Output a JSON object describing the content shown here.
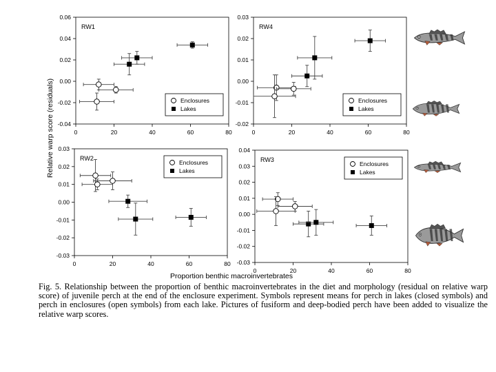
{
  "figure": {
    "y_axis_label": "Relative warp score (residuals)",
    "x_axis_label": "Proportion benthic macroinvertebrates",
    "fish_pictures": [
      {
        "name": "fusiform-perch-rw1",
        "body": "fusiform"
      },
      {
        "name": "deep-bodied-perch-rw1",
        "body": "deep"
      },
      {
        "name": "fusiform-perch-rw2",
        "body": "fusiform"
      },
      {
        "name": "deep-bodied-perch-rw2",
        "body": "deep"
      }
    ]
  },
  "chart_data": [
    {
      "type": "scatter",
      "title": "RW1",
      "xlim": [
        0,
        80
      ],
      "ylim": [
        -0.04,
        0.06
      ],
      "xticks": [
        "0",
        "20",
        "40",
        "60",
        "80"
      ],
      "yticks": [
        "-0.04",
        "-0.02",
        "0.00",
        "0.02",
        "0.04",
        "0.06"
      ],
      "legend": {
        "position": "bottom-right",
        "entries": [
          "Enclosures",
          "Lakes"
        ]
      },
      "series": [
        {
          "name": "Enclosures",
          "marker": "open-circle",
          "points": [
            {
              "x": 12,
              "y": -0.003,
              "xerr": 8,
              "yerr": 0.005
            },
            {
              "x": 11,
              "y": -0.019,
              "xerr": 9,
              "yerr": 0.008
            },
            {
              "x": 21,
              "y": -0.008,
              "xerr": 9,
              "yerr": 0.003
            }
          ]
        },
        {
          "name": "Lakes",
          "marker": "filled-square",
          "points": [
            {
              "x": 28,
              "y": 0.016,
              "xerr": 8,
              "yerr": 0.01
            },
            {
              "x": 32,
              "y": 0.022,
              "xerr": 8,
              "yerr": 0.006
            },
            {
              "x": 61,
              "y": 0.034,
              "xerr": 8,
              "yerr": 0.003
            }
          ]
        }
      ]
    },
    {
      "type": "scatter",
      "title": "RW4",
      "xlim": [
        0,
        80
      ],
      "ylim": [
        -0.02,
        0.03
      ],
      "xticks": [
        "0",
        "20",
        "40",
        "60",
        "80"
      ],
      "yticks": [
        "-0.02",
        "-0.01",
        "0.00",
        "0.01",
        "0.02",
        "0.03"
      ],
      "legend": {
        "position": "bottom-right",
        "entries": [
          "Enclosures",
          "Lakes"
        ]
      },
      "series": [
        {
          "name": "Enclosures",
          "marker": "open-circle",
          "points": [
            {
              "x": 12,
              "y": -0.003,
              "xerr": 10,
              "yerr": 0.006
            },
            {
              "x": 11,
              "y": -0.007,
              "xerr": 11,
              "yerr": 0.01
            },
            {
              "x": 21,
              "y": -0.0035,
              "xerr": 9,
              "yerr": 0.003
            }
          ]
        },
        {
          "name": "Lakes",
          "marker": "filled-square",
          "points": [
            {
              "x": 28,
              "y": 0.0025,
              "xerr": 8,
              "yerr": 0.005
            },
            {
              "x": 32,
              "y": 0.011,
              "xerr": 9,
              "yerr": 0.01
            },
            {
              "x": 61,
              "y": 0.019,
              "xerr": 8,
              "yerr": 0.005
            }
          ]
        }
      ]
    },
    {
      "type": "scatter",
      "title": "RW2",
      "xlim": [
        0,
        80
      ],
      "ylim": [
        -0.03,
        0.03
      ],
      "xticks": [
        "0",
        "20",
        "40",
        "60",
        "80"
      ],
      "yticks": [
        "-0.03",
        "-0.02",
        "-0.01",
        "0.00",
        "0.01",
        "0.02",
        "0.03"
      ],
      "legend": {
        "position": "top-right",
        "entries": [
          "Enclosures",
          "Lakes"
        ]
      },
      "series": [
        {
          "name": "Enclosures",
          "marker": "open-circle",
          "points": [
            {
              "x": 11,
              "y": 0.015,
              "xerr": 8,
              "yerr": 0.009
            },
            {
              "x": 12,
              "y": 0.01,
              "xerr": 8,
              "yerr": 0.003
            },
            {
              "x": 20,
              "y": 0.012,
              "xerr": 10,
              "yerr": 0.005
            }
          ]
        },
        {
          "name": "Lakes",
          "marker": "filled-square",
          "points": [
            {
              "x": 28,
              "y": 0.0005,
              "xerr": 10,
              "yerr": 0.0035
            },
            {
              "x": 32,
              "y": -0.0095,
              "xerr": 9,
              "yerr": 0.009
            },
            {
              "x": 61,
              "y": -0.0085,
              "xerr": 8,
              "yerr": 0.005
            }
          ]
        }
      ]
    },
    {
      "type": "scatter",
      "title": "RW3",
      "xlim": [
        0,
        80
      ],
      "ylim": [
        -0.03,
        0.04
      ],
      "xticks": [
        "0",
        "20",
        "40",
        "60",
        "80"
      ],
      "yticks": [
        "-0.03",
        "-0.02",
        "-0.01",
        "0.00",
        "0.01",
        "0.02",
        "0.03",
        "0.04"
      ],
      "legend": {
        "position": "top-right",
        "entries": [
          "Enclosures",
          "Lakes"
        ]
      },
      "series": [
        {
          "name": "Enclosures",
          "marker": "open-circle",
          "points": [
            {
              "x": 12,
              "y": 0.0095,
              "xerr": 8,
              "yerr": 0.004
            },
            {
              "x": 11,
              "y": 0.002,
              "xerr": 10,
              "yerr": 0.009
            },
            {
              "x": 21,
              "y": 0.005,
              "xerr": 9,
              "yerr": 0.003
            }
          ]
        },
        {
          "name": "Lakes",
          "marker": "filled-square",
          "points": [
            {
              "x": 28,
              "y": -0.006,
              "xerr": 8,
              "yerr": 0.008
            },
            {
              "x": 32,
              "y": -0.005,
              "xerr": 9,
              "yerr": 0.008
            },
            {
              "x": 61,
              "y": -0.007,
              "xerr": 8,
              "yerr": 0.006
            }
          ]
        }
      ]
    }
  ],
  "caption": {
    "text": "Fig. 5.  Relationship between the proportion of benthic macroinvertebrates in the diet and morphology (residual on relative warp score) of juvenile perch at the end of the enclosure experiment. Symbols represent means for perch in lakes (closed symbols) and perch in enclosures (open symbols) from each lake. Pictures of fusiform and deep-bodied perch have been added to visualize the relative warp scores."
  }
}
